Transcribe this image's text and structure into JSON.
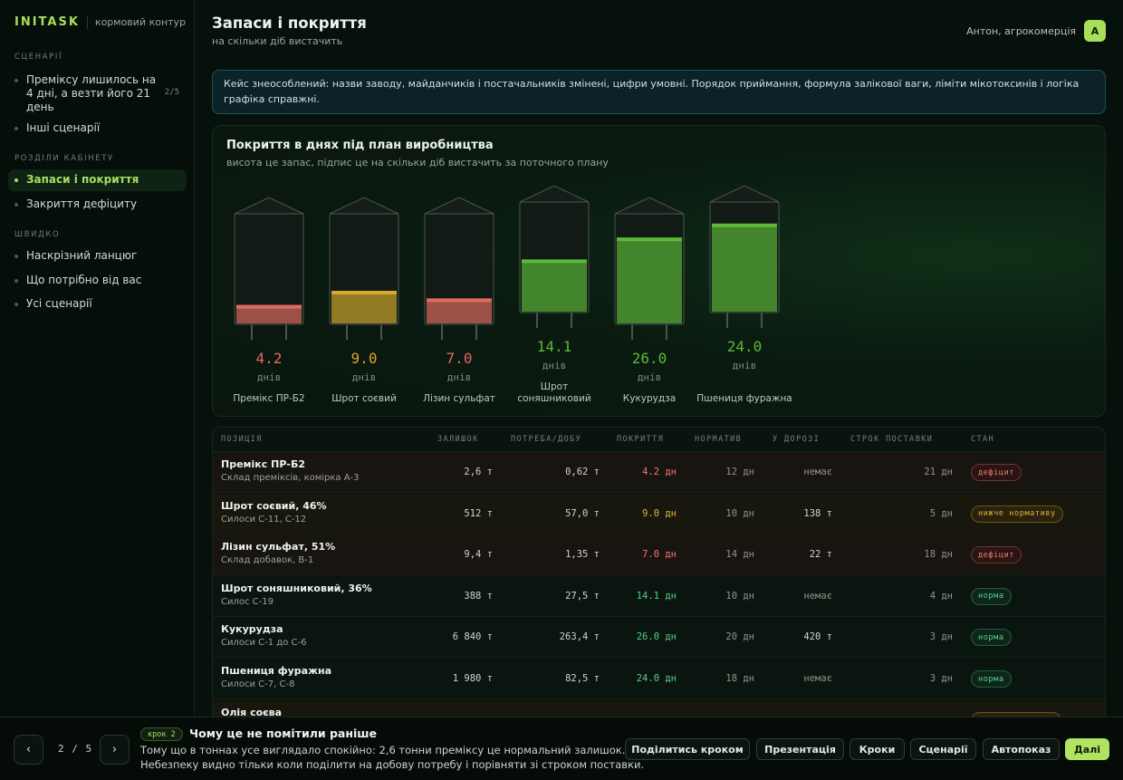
{
  "brand": {
    "logo": "INITASK",
    "subtitle": "кормовий контур"
  },
  "sidebar": {
    "sections": [
      {
        "label": "СЦЕНАРІЇ",
        "items": [
          {
            "label": "Премiксу лишилось на 4 днi, а везти його 21 день",
            "badge": "2/5"
          },
          {
            "label": "Інші сценарії",
            "badge": ""
          }
        ]
      },
      {
        "label": "РОЗДІЛИ КАБІНЕТУ",
        "items": [
          {
            "label": "Запаси і покриття",
            "active": true
          },
          {
            "label": "Закриття дефіциту"
          }
        ]
      },
      {
        "label": "ШВИДКО",
        "items": [
          {
            "label": "Наскрізний ланцюг"
          },
          {
            "label": "Що потрібно від вас"
          },
          {
            "label": "Усі сценарії"
          }
        ]
      }
    ]
  },
  "header": {
    "title": "Запаси і покриття",
    "subtitle": "на скільки діб вистачить"
  },
  "user": {
    "name": "Антон, агрокомерція",
    "initial": "A"
  },
  "notice": {
    "text": "Кейс знеособлений: назви заводу, майданчиків і постачальників змінені, цифри умовні. Порядок приймання, формула залікової ваги, ліміти мікотоксинів і логіка графіка справжні."
  },
  "chart": {
    "title": "Покриття в днях під план виробництва",
    "subtitle": "висота це запас, підпис це на скільки діб вистачить за поточного плану"
  },
  "chart_data": {
    "type": "bar",
    "unit_label": "днів",
    "categories": [
      "Премікс ПР-Б2",
      "Шрот соєвий",
      "Лізин сульфат",
      "Шрот соняшниковий",
      "Кукурудза",
      "Пшениця фуражна"
    ],
    "values": [
      4.2,
      9.0,
      7.0,
      14.1,
      26.0,
      24.0
    ],
    "value_labels": [
      "4.2",
      "9.0",
      "7.0",
      "14.1",
      "26.0",
      "24.0"
    ],
    "fill_fraction": [
      0.17,
      0.3,
      0.23,
      0.48,
      0.79,
      0.81
    ],
    "silo_tall": [
      false,
      false,
      false,
      true,
      false,
      true
    ],
    "status": [
      "deficit",
      "low",
      "deficit",
      "norm",
      "norm",
      "norm"
    ],
    "colors": {
      "deficit": "#e06a5f",
      "low": "#d2a92e",
      "norm": "#5bb83a"
    }
  },
  "table": {
    "headers": [
      "ПОЗИЦІЯ",
      "ЗАЛИШОК",
      "ПОТРЕБА/ДОБУ",
      "ПОКРИТТЯ",
      "НОРМАТИВ",
      "У ДОРОЗІ",
      "СТРОК ПОСТАВКИ",
      "СТАН"
    ],
    "rows": [
      {
        "name": "Премікс ПР-Б2",
        "location": "Склад преміксів, комірка А-3",
        "stock": "2,6 т",
        "need": "0,62 т",
        "coverage": "4.2 дн",
        "norm": "12 дн",
        "transit": "немає",
        "lead": "21 дн",
        "state": "дефіцит",
        "kind": "deficit"
      },
      {
        "name": "Шрот соєвий, 46%",
        "location": "Силоси С-11, С-12",
        "stock": "512 т",
        "need": "57,0 т",
        "coverage": "9.0 дн",
        "norm": "10 дн",
        "transit": "138 т",
        "lead": "5 дн",
        "state": "нижче нормативу",
        "kind": "low"
      },
      {
        "name": "Лізин сульфат, 51%",
        "location": "Склад добавок, В-1",
        "stock": "9,4 т",
        "need": "1,35 т",
        "coverage": "7.0 дн",
        "norm": "14 дн",
        "transit": "22 т",
        "lead": "18 дн",
        "state": "дефіцит",
        "kind": "deficit"
      },
      {
        "name": "Шрот соняшниковий, 36%",
        "location": "Силос С-19",
        "stock": "388 т",
        "need": "27,5 т",
        "coverage": "14.1 дн",
        "norm": "10 дн",
        "transit": "немає",
        "lead": "4 дн",
        "state": "норма",
        "kind": "norm"
      },
      {
        "name": "Кукурудза",
        "location": "Силоси С-1 до С-6",
        "stock": "6 840 т",
        "need": "263,4 т",
        "coverage": "26.0 дн",
        "norm": "20 дн",
        "transit": "420 т",
        "lead": "3 дн",
        "state": "норма",
        "kind": "norm"
      },
      {
        "name": "Пшениця фуражна",
        "location": "Силоси С-7, С-8",
        "stock": "1 980 т",
        "need": "82,5 т",
        "coverage": "24.0 дн",
        "norm": "18 дн",
        "transit": "немає",
        "lead": "3 дн",
        "state": "норма",
        "kind": "norm"
      },
      {
        "name": "Олія соєва",
        "location": "",
        "stock": "",
        "need": "",
        "coverage": "",
        "norm": "",
        "transit": "",
        "lead": "",
        "state": "",
        "kind": "low"
      }
    ]
  },
  "footer": {
    "counter": "2 / 5",
    "prev_icon": "‹",
    "next_icon": "›",
    "step_badge": "крок 2",
    "step_title": "Чому це не помітили раніше",
    "step_text_1": "Тому що в тоннах усе виглядало спокійно: 2,6 тонни преміксу це нормальний залишок.",
    "step_text_2": "Небезпеку видно тільки коли поділити на добову потребу і порівняти зі строком поставки.",
    "actions": [
      "Поділитись кроком",
      "Презентація",
      "Кроки",
      "Сценарії",
      "Автопоказ",
      "Далі"
    ]
  }
}
